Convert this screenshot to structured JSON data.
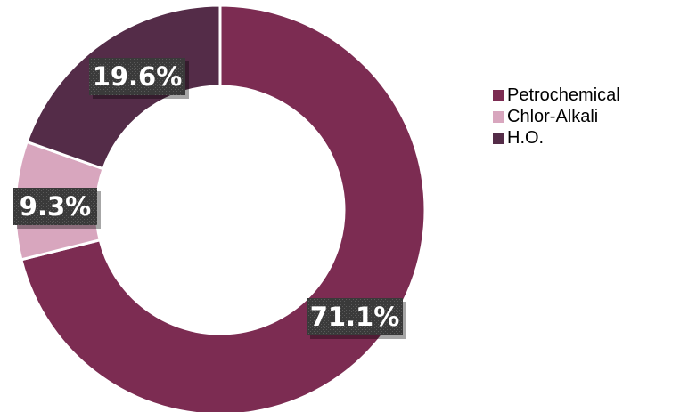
{
  "chart_data": {
    "type": "pie",
    "subtype": "donut",
    "categories": [
      "Petrochemical",
      "Chlor-Alkali",
      "H.O."
    ],
    "values": [
      71.1,
      9.3,
      19.6
    ],
    "labels": [
      "71.1%",
      "9.3%",
      "19.6%"
    ],
    "colors": [
      "#7c2c52",
      "#d8a6be",
      "#542c48"
    ],
    "legend": "right",
    "title": ""
  }
}
